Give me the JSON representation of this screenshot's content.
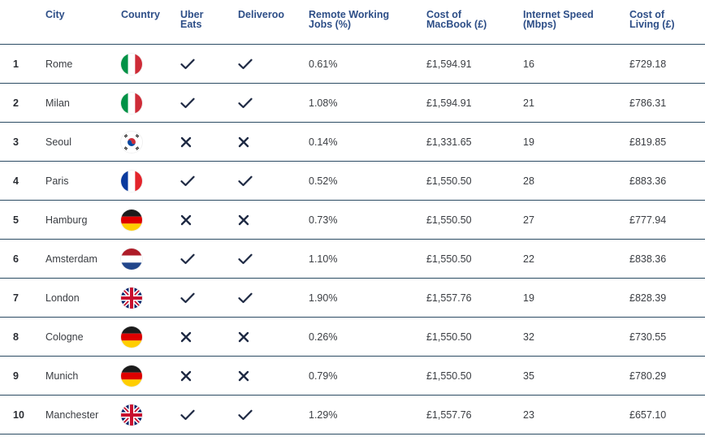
{
  "headers": {
    "city": "City",
    "country": "Country",
    "uber_1": "Uber",
    "uber_2": "Eats",
    "deliveroo": "Deliveroo",
    "remote_1": "Remote Working",
    "remote_2": "Jobs (%)",
    "macbook_1": "Cost of",
    "macbook_2": "MacBook (£)",
    "speed_1": "Internet Speed",
    "speed_2": "(Mbps)",
    "living_1": "Cost of",
    "living_2": "Living (£)"
  },
  "colors": {
    "header_text": "#2d4e87",
    "divider": "#2b4b63",
    "mark": "#1f2a44"
  },
  "rows": [
    {
      "rank": "1",
      "city": "Rome",
      "flag": "italy-flag-icon",
      "uber": "check",
      "deliveroo": "check",
      "remote": "0.61%",
      "macbook": "£1,594.91",
      "speed": "16",
      "living": "£729.18"
    },
    {
      "rank": "2",
      "city": "Milan",
      "flag": "italy-flag-icon",
      "uber": "check",
      "deliveroo": "check",
      "remote": "1.08%",
      "macbook": "£1,594.91",
      "speed": "21",
      "living": "£786.31"
    },
    {
      "rank": "3",
      "city": "Seoul",
      "flag": "south-korea-flag-icon",
      "uber": "cross",
      "deliveroo": "cross",
      "remote": "0.14%",
      "macbook": "£1,331.65",
      "speed": "19",
      "living": "£819.85"
    },
    {
      "rank": "4",
      "city": "Paris",
      "flag": "france-flag-icon",
      "uber": "check",
      "deliveroo": "check",
      "remote": "0.52%",
      "macbook": "£1,550.50",
      "speed": "28",
      "living": "£883.36"
    },
    {
      "rank": "5",
      "city": "Hamburg",
      "flag": "germany-flag-icon",
      "uber": "cross",
      "deliveroo": "cross",
      "remote": "0.73%",
      "macbook": "£1,550.50",
      "speed": "27",
      "living": "£777.94"
    },
    {
      "rank": "6",
      "city": "Amsterdam",
      "flag": "netherlands-flag-icon",
      "uber": "check",
      "deliveroo": "check",
      "remote": "1.10%",
      "macbook": "£1,550.50",
      "speed": "22",
      "living": "£838.36"
    },
    {
      "rank": "7",
      "city": "London",
      "flag": "uk-flag-icon",
      "uber": "check",
      "deliveroo": "check",
      "remote": "1.90%",
      "macbook": "£1,557.76",
      "speed": "19",
      "living": "£828.39"
    },
    {
      "rank": "8",
      "city": "Cologne",
      "flag": "germany-flag-icon",
      "uber": "cross",
      "deliveroo": "cross",
      "remote": "0.26%",
      "macbook": "£1,550.50",
      "speed": "32",
      "living": "£730.55"
    },
    {
      "rank": "9",
      "city": "Munich",
      "flag": "germany-flag-icon",
      "uber": "cross",
      "deliveroo": "cross",
      "remote": "0.79%",
      "macbook": "£1,550.50",
      "speed": "35",
      "living": "£780.29"
    },
    {
      "rank": "10",
      "city": "Manchester",
      "flag": "uk-flag-icon",
      "uber": "check",
      "deliveroo": "check",
      "remote": "1.29%",
      "macbook": "£1,557.76",
      "speed": "23",
      "living": "£657.10"
    }
  ]
}
